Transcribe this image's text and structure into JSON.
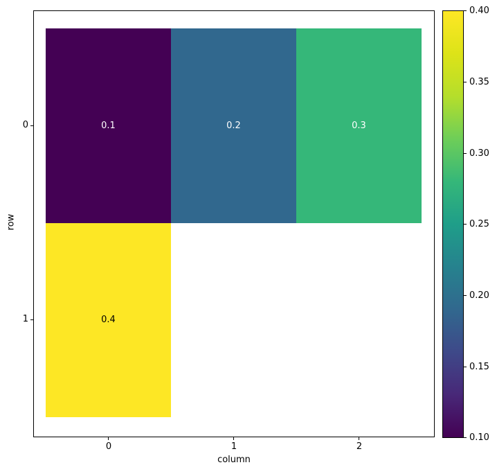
{
  "chart_data": {
    "type": "heatmap",
    "xlabel": "column",
    "ylabel": "row",
    "x_tick_labels": [
      "0",
      "1",
      "2"
    ],
    "y_tick_labels": [
      "0",
      "1"
    ],
    "values": [
      [
        0.1,
        0.2,
        0.3
      ],
      [
        0.4,
        null,
        null
      ]
    ],
    "colormap": "viridis",
    "vmin": 0.1,
    "vmax": 0.4,
    "missing_color": "#ffffff",
    "grid": false,
    "cells": [
      {
        "row": 0,
        "col": 0,
        "value": 0.1,
        "label": "0.1",
        "color": "#440154",
        "text_color": "#ffffff"
      },
      {
        "row": 0,
        "col": 1,
        "value": 0.2,
        "label": "0.2",
        "color": "#31688e",
        "text_color": "#ffffff"
      },
      {
        "row": 0,
        "col": 2,
        "value": 0.3,
        "label": "0.3",
        "color": "#35b779",
        "text_color": "#ffffff"
      },
      {
        "row": 1,
        "col": 0,
        "value": 0.4,
        "label": "0.4",
        "color": "#fde725",
        "text_color": "#000000"
      }
    ],
    "colorbar": {
      "position": "right",
      "tick_labels": [
        "0.40",
        "0.35",
        "0.30",
        "0.25",
        "0.20",
        "0.15",
        "0.10"
      ],
      "gradient_bottom_to_top": [
        "#440154",
        "#482878",
        "#3e4989",
        "#31688e",
        "#26828e",
        "#1f9e89",
        "#35b779",
        "#6ece58",
        "#b5de2b",
        "#dde318",
        "#fde725"
      ]
    }
  }
}
